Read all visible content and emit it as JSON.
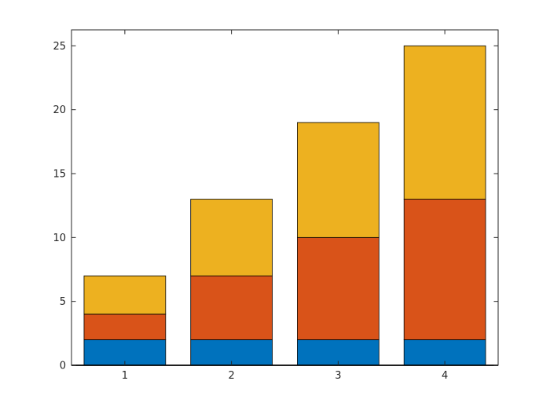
{
  "chart_data": {
    "type": "bar",
    "stacked": true,
    "title": "",
    "xlabel": "",
    "ylabel": "",
    "categories": [
      "1",
      "2",
      "3",
      "4"
    ],
    "series": [
      {
        "values": [
          2,
          2,
          2,
          2
        ],
        "color": "#0072BD"
      },
      {
        "values": [
          2,
          5,
          8,
          11
        ],
        "color": "#D95319"
      },
      {
        "values": [
          3,
          6,
          9,
          12
        ],
        "color": "#EDB120"
      }
    ],
    "ylim": [
      0,
      26.25
    ],
    "yticks": [
      0,
      5,
      10,
      15,
      20,
      25
    ],
    "grid": false,
    "box": true
  }
}
